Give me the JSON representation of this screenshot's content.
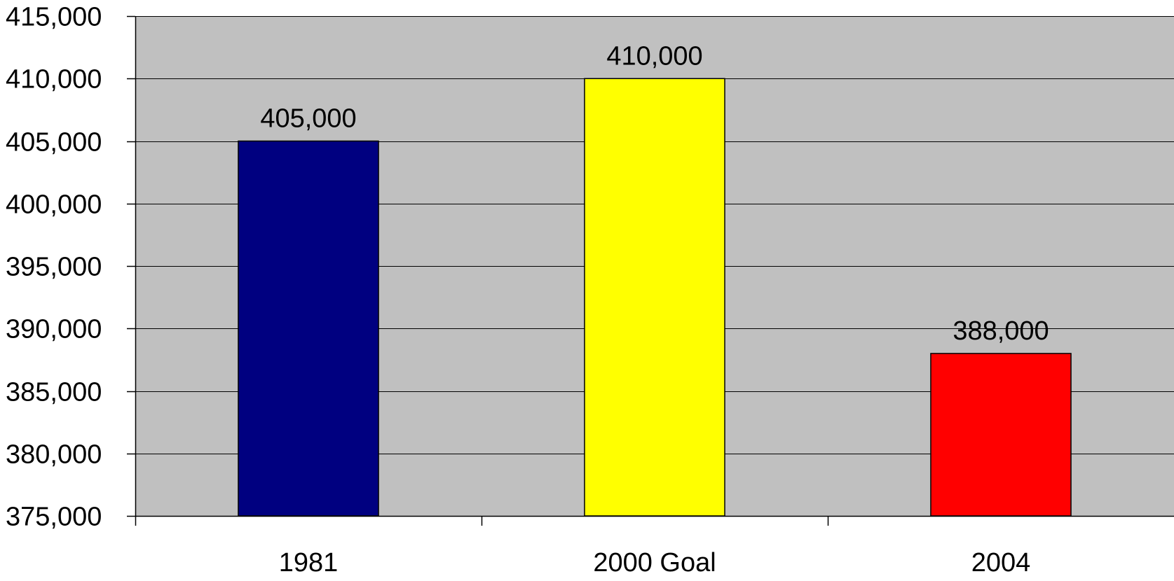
{
  "chart_data": {
    "type": "bar",
    "title": "",
    "xlabel": "",
    "ylabel": "",
    "categories": [
      "1981",
      "2000 Goal",
      "2004"
    ],
    "values": [
      405000,
      410000,
      388000
    ],
    "value_labels": [
      "405,000",
      "410,000",
      "388,000"
    ],
    "bar_colors": [
      "#000080",
      "#FFFF00",
      "#FF0000"
    ],
    "ylim": [
      375000,
      415000
    ],
    "yticks": [
      375000,
      380000,
      385000,
      390000,
      395000,
      400000,
      405000,
      410000,
      415000
    ],
    "ytick_labels": [
      "375,000",
      "380,000",
      "385,000",
      "390,000",
      "395,000",
      "400,000",
      "405,000",
      "410,000",
      "415,000"
    ],
    "grid": true,
    "legend": "none",
    "plot_background": "#C0C0C0",
    "gridline_color": "#000000",
    "axis_color": "#000000"
  }
}
